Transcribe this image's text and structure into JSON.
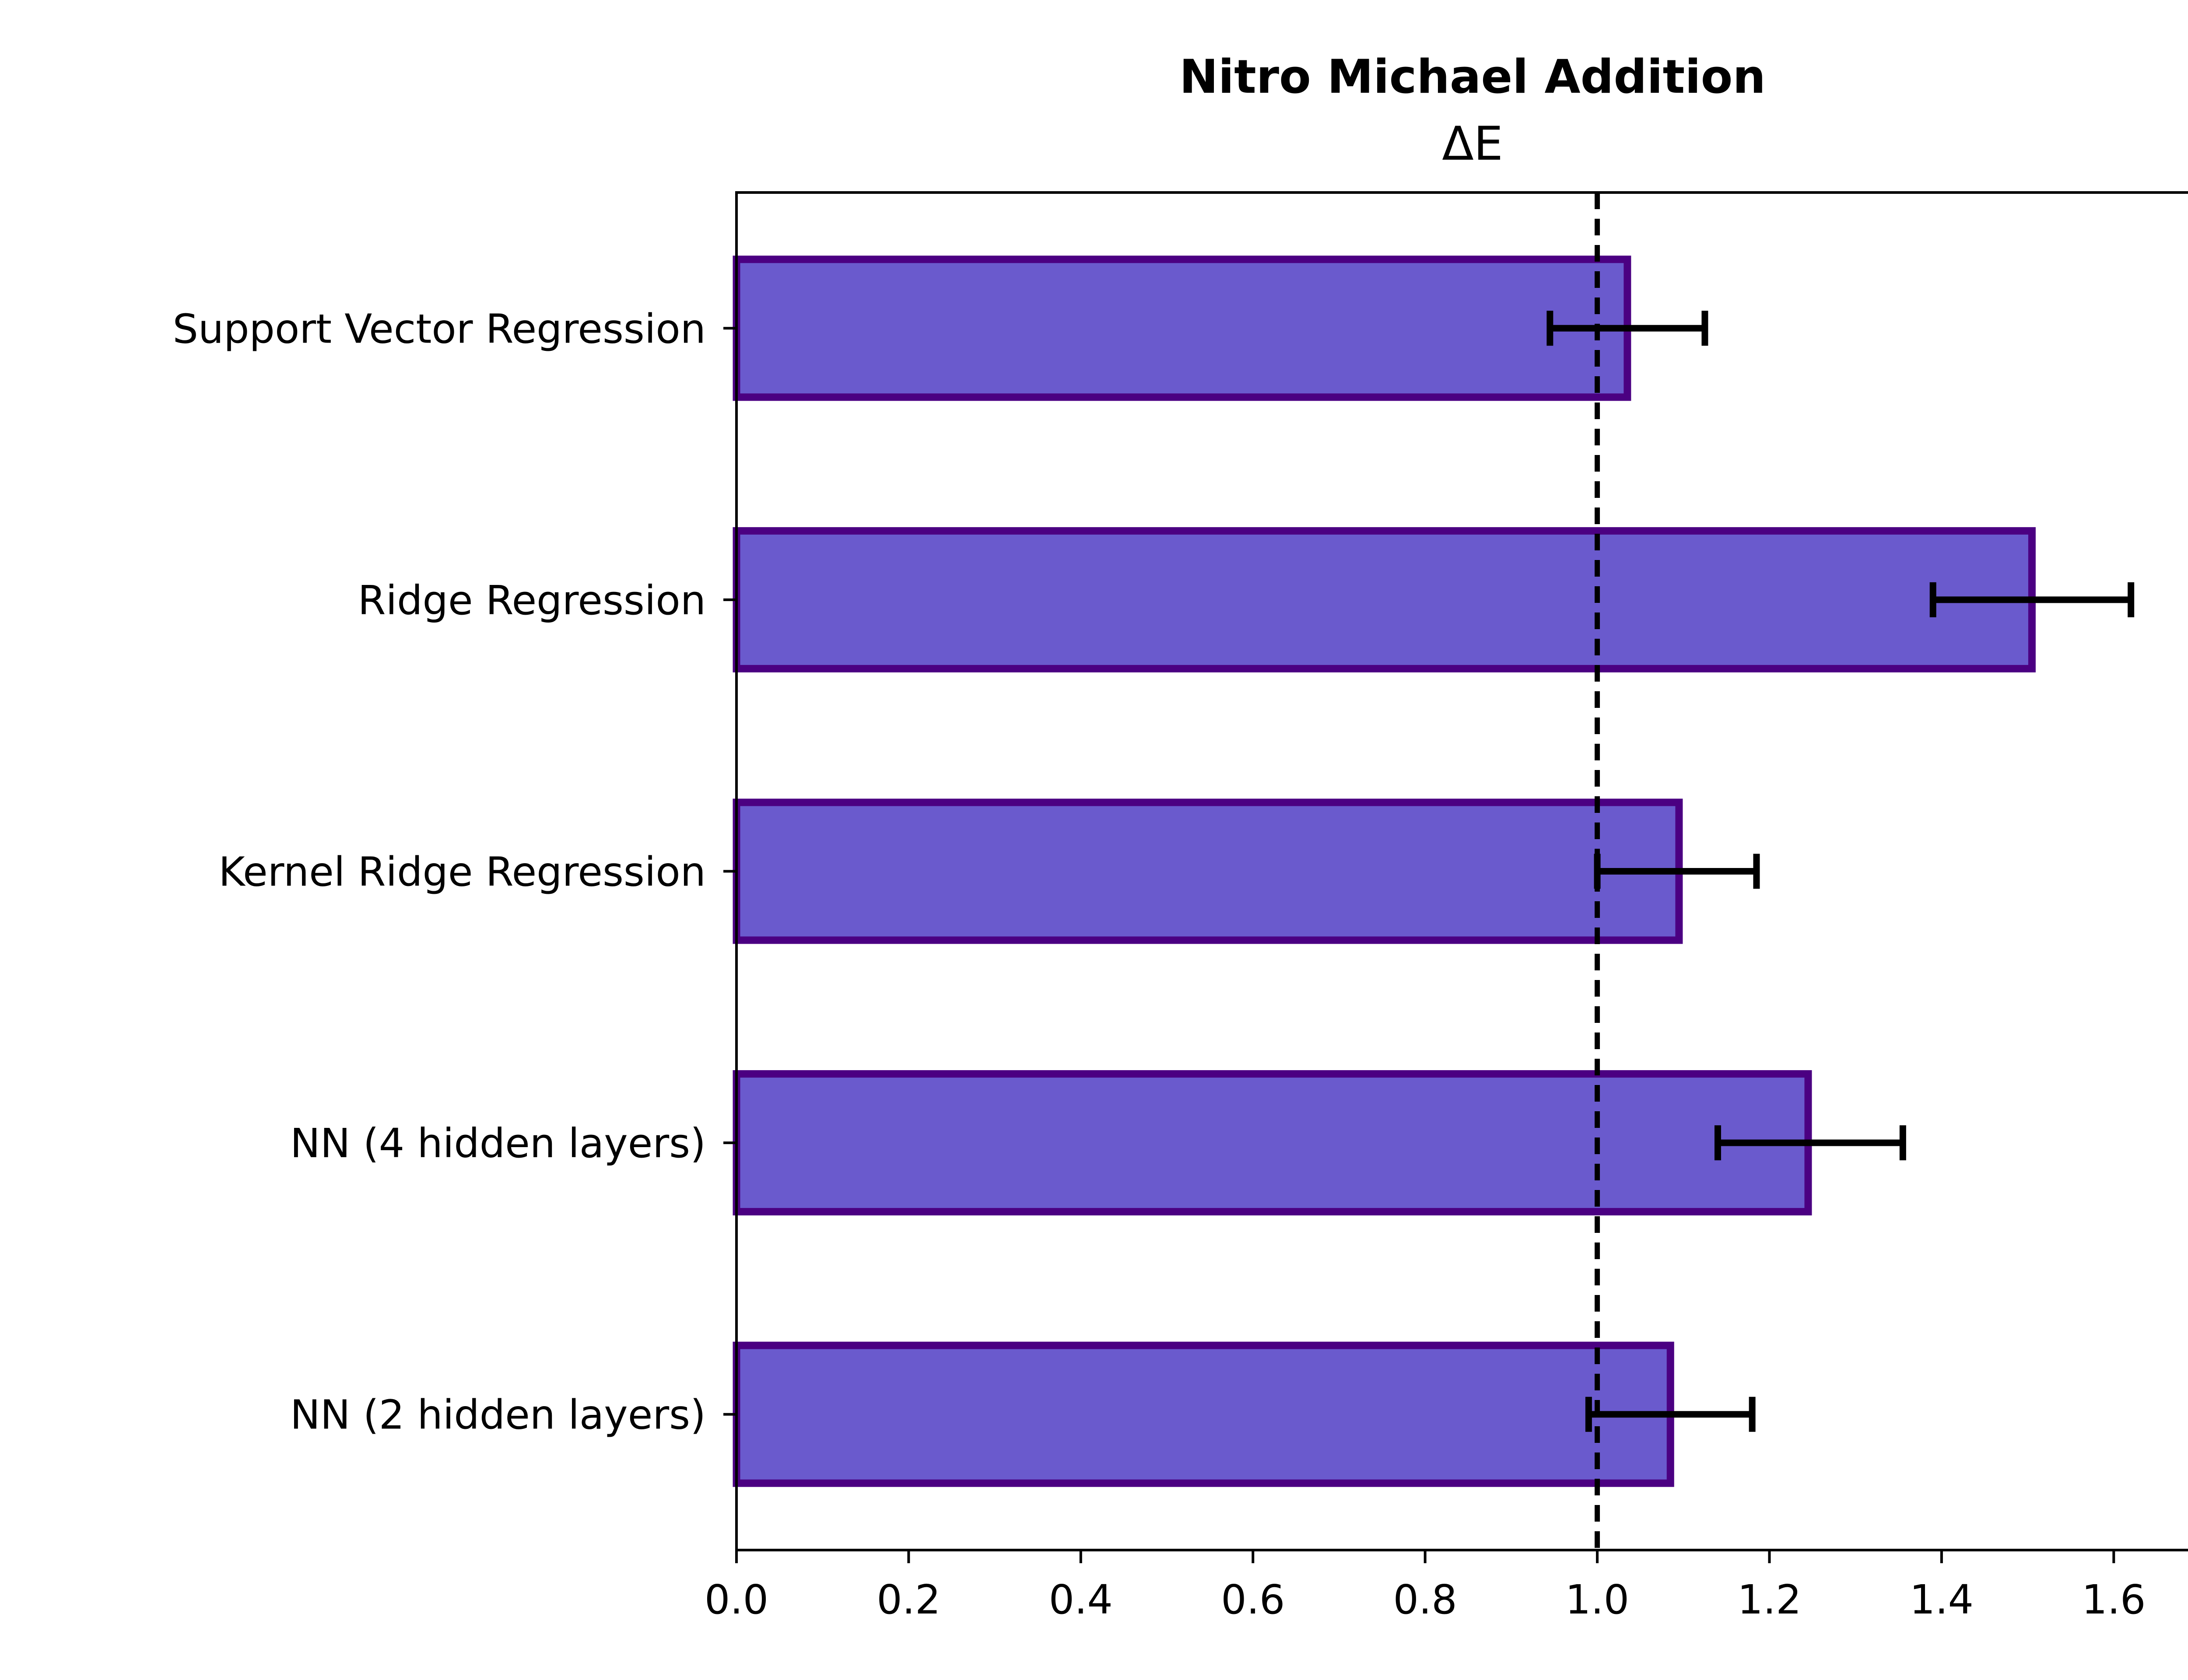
{
  "chart_data": {
    "type": "bar",
    "orientation": "horizontal",
    "title": "Nitro Michael Addition",
    "subtitle": "ΔE",
    "xlabel": "",
    "ylabel": "",
    "categories": [
      "Support Vector Regression",
      "Ridge Regression",
      "Kernel Ridge Regression",
      "NN (4 hidden layers)",
      "NN (2 hidden layers)"
    ],
    "series": [
      {
        "values": [
          1.035,
          1.505,
          1.095,
          1.245,
          1.085
        ],
        "error_low": [
          0.945,
          1.39,
          1.0,
          1.14,
          0.99
        ],
        "error_high": [
          1.125,
          1.62,
          1.185,
          1.355,
          1.18
        ]
      }
    ],
    "xlim": [
      0.0,
      1.7
    ],
    "xticks": [
      "0.0",
      "0.2",
      "0.4",
      "0.6",
      "0.8",
      "1.0",
      "1.2",
      "1.4",
      "1.6"
    ],
    "reference_line": 1.0,
    "grid": false,
    "legend": "none",
    "colors": {
      "bar_fill": "#6a5acd",
      "bar_edge": "#4b0082",
      "error_bar": "#000000",
      "reference_line": "#000000"
    }
  }
}
